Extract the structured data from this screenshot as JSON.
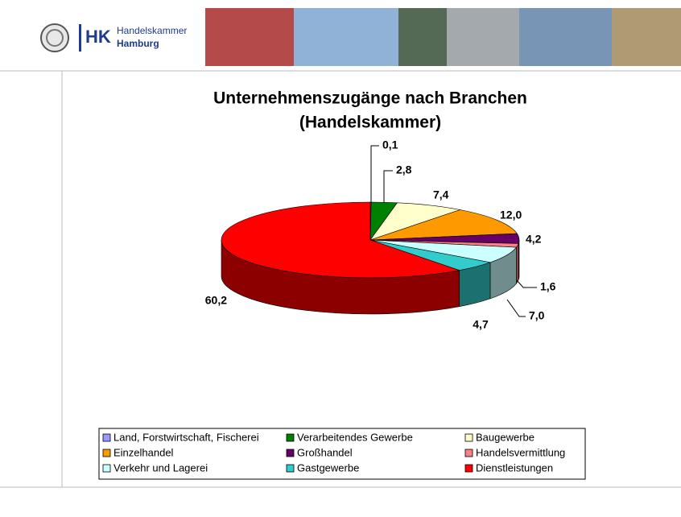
{
  "header": {
    "logo_abbr": "HK",
    "name_line1": "Handelskammer",
    "name_line2": "Hamburg"
  },
  "chart_data": {
    "type": "pie3d",
    "title": [
      "Unternehmenszugänge nach Branchen",
      "(Handelskammer)"
    ],
    "categories": [
      "Land, Forstwirtschaft, Fischerei",
      "Verarbeitendes Gewerbe",
      "Baugewerbe",
      "Einzelhandel",
      "Großhandel",
      "Handelsvermittlung",
      "Verkehr und Lagerei",
      "Gastgewerbe",
      "Dienstleistungen"
    ],
    "values": [
      0.1,
      2.8,
      7.4,
      12.0,
      4.2,
      1.6,
      7.0,
      4.7,
      60.2
    ],
    "value_labels": [
      "0,1",
      "2,8",
      "7,4",
      "12,0",
      "4,2",
      "1,6",
      "7,0",
      "4,7",
      "60,2"
    ],
    "colors": [
      "#9999ff",
      "#008000",
      "#ffffcc",
      "#ff9900",
      "#660066",
      "#ff8080",
      "#ccffff",
      "#33cccc",
      "#ff0000"
    ],
    "legend": "bottom"
  }
}
